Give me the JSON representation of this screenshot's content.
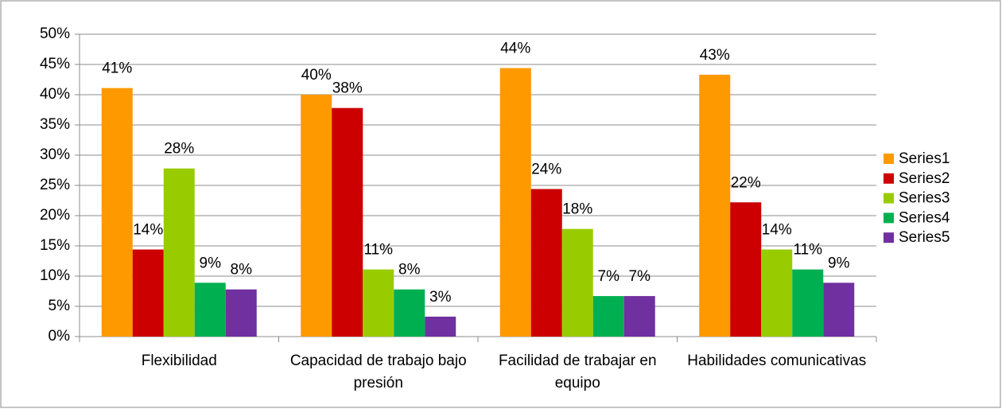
{
  "chart_data": {
    "type": "bar",
    "categories": [
      "Flexibilidad",
      "Capacidad de trabajo bajo presión",
      "Facilidad de trabajar en equipo",
      "Habilidades comunicativas"
    ],
    "series": [
      {
        "name": "Series1",
        "color": "#ff9900",
        "values": [
          41.1,
          40,
          44.4,
          43.3
        ],
        "value_labels": [
          "41%",
          "40%",
          "44%",
          "43%"
        ]
      },
      {
        "name": "Series2",
        "color": "#cc0000",
        "values": [
          14.4,
          37.8,
          24.4,
          22.2
        ],
        "value_labels": [
          "14%",
          "38%",
          "24%",
          "22%"
        ]
      },
      {
        "name": "Series3",
        "color": "#99cc00",
        "values": [
          27.8,
          11.1,
          17.8,
          14.4
        ],
        "value_labels": [
          "28%",
          "11%",
          "18%",
          "14%"
        ]
      },
      {
        "name": "Series4",
        "color": "#00b050",
        "values": [
          8.9,
          7.8,
          6.7,
          11.1
        ],
        "value_labels": [
          "9%",
          "8%",
          "7%",
          "11%"
        ]
      },
      {
        "name": "Series5",
        "color": "#7030a0",
        "values": [
          7.8,
          3.3,
          6.7,
          8.9
        ],
        "value_labels": [
          "8%",
          "3%",
          "7%",
          "9%"
        ]
      }
    ],
    "ylim": [
      0,
      50
    ],
    "yticks": [
      {
        "value": 0,
        "label": "0%"
      },
      {
        "value": 5,
        "label": "5%"
      },
      {
        "value": 10,
        "label": "10%"
      },
      {
        "value": 15,
        "label": "15%"
      },
      {
        "value": 20,
        "label": "20%"
      },
      {
        "value": 25,
        "label": "25%"
      },
      {
        "value": 30,
        "label": "30%"
      },
      {
        "value": 35,
        "label": "35%"
      },
      {
        "value": 40,
        "label": "40%"
      },
      {
        "value": 45,
        "label": "45%"
      },
      {
        "value": 50,
        "label": "50%"
      }
    ],
    "grid": true,
    "legend": "right"
  }
}
